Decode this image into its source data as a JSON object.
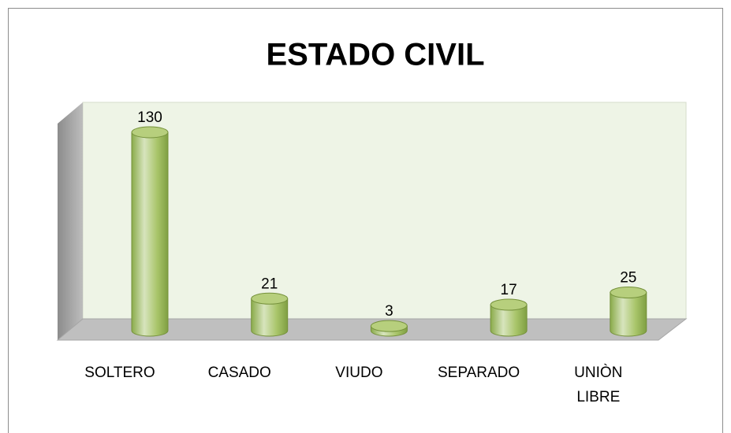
{
  "chart_data": {
    "type": "bar",
    "title": "ESTADO CIVIL",
    "categories": [
      "SOLTERO",
      "CASADO",
      "VIUDO",
      "SEPARADO",
      "UNIÒN LIBRE"
    ],
    "values": [
      130,
      21,
      3,
      17,
      25
    ],
    "color": "#9bbb59"
  }
}
